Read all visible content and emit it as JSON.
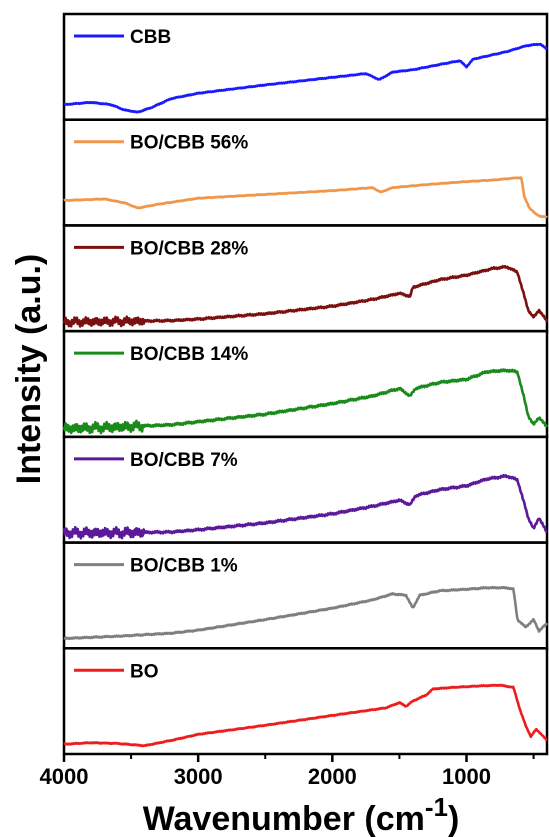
{
  "chart_data": {
    "type": "line",
    "layout": "stacked-panels",
    "xlabel": "Wavenumber (cm",
    "xlabel_sup": "-1",
    "xlabel_close": ")",
    "ylabel": "Intensity (a.u.)",
    "xlim": [
      4000,
      400
    ],
    "x_reversed": true,
    "xticks": [
      4000,
      3000,
      2000,
      1000
    ],
    "xtick_labels": [
      "4000",
      "3000",
      "2000",
      "1000"
    ],
    "grid": false,
    "y_ticks_shown": false,
    "series": [
      {
        "name": "CBB",
        "color": "#1a1aff",
        "noise": 0.6,
        "points": [
          [
            4000,
            0.12
          ],
          [
            3800,
            0.15
          ],
          [
            3650,
            0.12
          ],
          [
            3550,
            0.05
          ],
          [
            3450,
            0.02
          ],
          [
            3350,
            0.08
          ],
          [
            3200,
            0.2
          ],
          [
            3000,
            0.27
          ],
          [
            2500,
            0.38
          ],
          [
            2000,
            0.48
          ],
          [
            1750,
            0.53
          ],
          [
            1650,
            0.45
          ],
          [
            1550,
            0.55
          ],
          [
            1400,
            0.58
          ],
          [
            1200,
            0.65
          ],
          [
            1050,
            0.7
          ],
          [
            1000,
            0.62
          ],
          [
            950,
            0.72
          ],
          [
            700,
            0.82
          ],
          [
            550,
            0.9
          ],
          [
            450,
            0.92
          ],
          [
            400,
            0.85
          ]
        ]
      },
      {
        "name": "BO/CBB 56%",
        "color": "#f0964a",
        "noise": 0.5,
        "points": [
          [
            4000,
            0.25
          ],
          [
            3700,
            0.27
          ],
          [
            3550,
            0.22
          ],
          [
            3450,
            0.15
          ],
          [
            3300,
            0.2
          ],
          [
            3000,
            0.28
          ],
          [
            2000,
            0.38
          ],
          [
            1700,
            0.42
          ],
          [
            1640,
            0.36
          ],
          [
            1550,
            0.42
          ],
          [
            1300,
            0.46
          ],
          [
            1000,
            0.5
          ],
          [
            800,
            0.52
          ],
          [
            620,
            0.55
          ],
          [
            590,
            0.55
          ],
          [
            570,
            0.3
          ],
          [
            530,
            0.15
          ],
          [
            490,
            0.08
          ],
          [
            450,
            0.04
          ],
          [
            400,
            0.03
          ]
        ]
      },
      {
        "name": "BO/CBB 28%",
        "color": "#7a1010",
        "noise": 1.2,
        "points": [
          [
            4000,
            0.04
          ],
          [
            3600,
            0.05
          ],
          [
            3200,
            0.06
          ],
          [
            3000,
            0.08
          ],
          [
            2500,
            0.15
          ],
          [
            2000,
            0.25
          ],
          [
            1700,
            0.34
          ],
          [
            1500,
            0.42
          ],
          [
            1420,
            0.38
          ],
          [
            1400,
            0.5
          ],
          [
            1200,
            0.6
          ],
          [
            1000,
            0.66
          ],
          [
            800,
            0.75
          ],
          [
            700,
            0.77
          ],
          [
            620,
            0.7
          ],
          [
            580,
            0.45
          ],
          [
            540,
            0.2
          ],
          [
            500,
            0.1
          ],
          [
            460,
            0.2
          ],
          [
            400,
            0.05
          ]
        ]
      },
      {
        "name": "BO/CBB 14%",
        "color": "#1a8a1a",
        "noise": 1.4,
        "points": [
          [
            4000,
            0.03
          ],
          [
            3600,
            0.05
          ],
          [
            3200,
            0.08
          ],
          [
            3000,
            0.12
          ],
          [
            2500,
            0.22
          ],
          [
            2000,
            0.36
          ],
          [
            1700,
            0.46
          ],
          [
            1500,
            0.56
          ],
          [
            1420,
            0.46
          ],
          [
            1380,
            0.56
          ],
          [
            1200,
            0.64
          ],
          [
            1000,
            0.68
          ],
          [
            850,
            0.78
          ],
          [
            700,
            0.8
          ],
          [
            620,
            0.78
          ],
          [
            580,
            0.5
          ],
          [
            540,
            0.2
          ],
          [
            500,
            0.08
          ],
          [
            460,
            0.18
          ],
          [
            400,
            0.05
          ]
        ]
      },
      {
        "name": "BO/CBB 7%",
        "color": "#5a1a9a",
        "noise": 1.4,
        "points": [
          [
            4000,
            0.05
          ],
          [
            3600,
            0.05
          ],
          [
            3200,
            0.06
          ],
          [
            3000,
            0.09
          ],
          [
            2500,
            0.18
          ],
          [
            2000,
            0.3
          ],
          [
            1700,
            0.4
          ],
          [
            1500,
            0.48
          ],
          [
            1420,
            0.42
          ],
          [
            1380,
            0.54
          ],
          [
            1200,
            0.62
          ],
          [
            1000,
            0.67
          ],
          [
            850,
            0.76
          ],
          [
            700,
            0.8
          ],
          [
            620,
            0.75
          ],
          [
            580,
            0.5
          ],
          [
            540,
            0.25
          ],
          [
            500,
            0.1
          ],
          [
            460,
            0.25
          ],
          [
            400,
            0.05
          ]
        ]
      },
      {
        "name": "BO/CBB 1%",
        "color": "#7f7f7f",
        "noise": 0.8,
        "points": [
          [
            4000,
            0.05
          ],
          [
            3600,
            0.08
          ],
          [
            3200,
            0.12
          ],
          [
            3000,
            0.16
          ],
          [
            2500,
            0.3
          ],
          [
            2000,
            0.45
          ],
          [
            1700,
            0.56
          ],
          [
            1550,
            0.64
          ],
          [
            1450,
            0.62
          ],
          [
            1400,
            0.45
          ],
          [
            1350,
            0.62
          ],
          [
            1200,
            0.68
          ],
          [
            1000,
            0.7
          ],
          [
            850,
            0.72
          ],
          [
            700,
            0.72
          ],
          [
            650,
            0.7
          ],
          [
            620,
            0.3
          ],
          [
            560,
            0.2
          ],
          [
            500,
            0.3
          ],
          [
            460,
            0.15
          ],
          [
            400,
            0.25
          ]
        ]
      },
      {
        "name": "BO",
        "color": "#ee1c1c",
        "noise": 0.6,
        "points": [
          [
            4000,
            0.05
          ],
          [
            3800,
            0.07
          ],
          [
            3600,
            0.06
          ],
          [
            3400,
            0.03
          ],
          [
            3200,
            0.1
          ],
          [
            3000,
            0.18
          ],
          [
            2500,
            0.3
          ],
          [
            2000,
            0.43
          ],
          [
            1600,
            0.53
          ],
          [
            1500,
            0.6
          ],
          [
            1450,
            0.55
          ],
          [
            1400,
            0.62
          ],
          [
            1300,
            0.7
          ],
          [
            1250,
            0.78
          ],
          [
            1100,
            0.8
          ],
          [
            900,
            0.82
          ],
          [
            750,
            0.83
          ],
          [
            650,
            0.8
          ],
          [
            600,
            0.5
          ],
          [
            560,
            0.3
          ],
          [
            520,
            0.15
          ],
          [
            480,
            0.25
          ],
          [
            400,
            0.1
          ]
        ]
      }
    ]
  }
}
